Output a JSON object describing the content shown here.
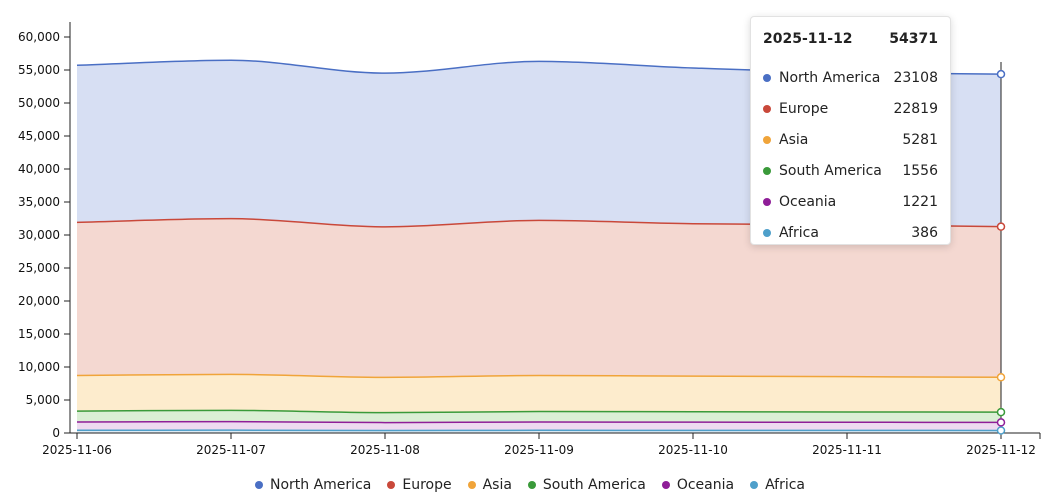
{
  "chart_data": {
    "type": "area",
    "stacked": true,
    "x": [
      "2025-11-06",
      "2025-11-07",
      "2025-11-08",
      "2025-11-09",
      "2025-11-10",
      "2025-11-11",
      "2025-11-12"
    ],
    "series": [
      {
        "name": "Africa",
        "color": "#4e9fca",
        "values": [
          420,
          430,
          380,
          410,
          400,
          395,
          386
        ]
      },
      {
        "name": "Oceania",
        "color": "#8f1e98",
        "values": [
          1250,
          1300,
          1200,
          1250,
          1240,
          1230,
          1221
        ]
      },
      {
        "name": "South America",
        "color": "#3a9a3a",
        "values": [
          1650,
          1700,
          1500,
          1600,
          1570,
          1560,
          1556
        ]
      },
      {
        "name": "Asia",
        "color": "#f0a43a",
        "values": [
          5400,
          5450,
          5350,
          5450,
          5400,
          5350,
          5281
        ]
      },
      {
        "name": "Europe",
        "color": "#c9483a",
        "values": [
          23200,
          23600,
          22800,
          23500,
          23100,
          23000,
          22819
        ]
      },
      {
        "name": "North America",
        "color": "#4a6fc4",
        "values": [
          23800,
          24000,
          23300,
          24100,
          23600,
          23100,
          23108
        ]
      }
    ],
    "fill_colors": {
      "Africa": "#dbeaf4",
      "Oceania": "#eedaf0",
      "South America": "#dbefd5",
      "Asia": "#fdeccd",
      "Europe": "#f4d8d1",
      "North America": "#d7dff3"
    },
    "y_ticks": [
      "0",
      "5,000",
      "10,000",
      "15,000",
      "20,000",
      "25,000",
      "30,000",
      "35,000",
      "40,000",
      "45,000",
      "50,000",
      "55,000",
      "60,000"
    ],
    "ylim": [
      0,
      60000
    ],
    "hover_index": 6,
    "title": "",
    "xlabel": "",
    "ylabel": "",
    "grid": false,
    "legend_position": "bottom"
  },
  "tooltip": {
    "date": "2025-11-12",
    "total": "54371",
    "rows": [
      {
        "name": "North America",
        "value": "23108",
        "color": "#4a6fc4"
      },
      {
        "name": "Europe",
        "value": "22819",
        "color": "#c9483a"
      },
      {
        "name": "Asia",
        "value": "5281",
        "color": "#f0a43a"
      },
      {
        "name": "South America",
        "value": "1556",
        "color": "#3a9a3a"
      },
      {
        "name": "Oceania",
        "value": "1221",
        "color": "#8f1e98"
      },
      {
        "name": "Africa",
        "value": "386",
        "color": "#4e9fca"
      }
    ]
  },
  "legend": [
    {
      "name": "North America",
      "color": "#4a6fc4"
    },
    {
      "name": "Europe",
      "color": "#c9483a"
    },
    {
      "name": "Asia",
      "color": "#f0a43a"
    },
    {
      "name": "South America",
      "color": "#3a9a3a"
    },
    {
      "name": "Oceania",
      "color": "#8f1e98"
    },
    {
      "name": "Africa",
      "color": "#4e9fca"
    }
  ]
}
